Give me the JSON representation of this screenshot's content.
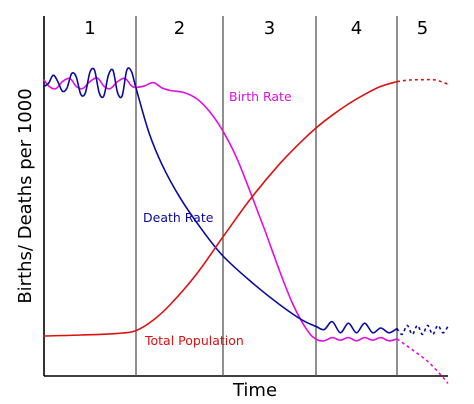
{
  "chart_data": {
    "type": "line",
    "xlabel": "Time",
    "ylabel": "Births/ Deaths per 1000",
    "stages": [
      "1",
      "2",
      "3",
      "4",
      "5"
    ],
    "stage_boundaries": [
      0,
      1,
      2,
      3,
      4,
      5
    ],
    "x_range": [
      0,
      5
    ],
    "y_range": [
      0,
      100
    ],
    "grid": false,
    "legend": "none (series labeled inline)",
    "series": [
      {
        "name": "Birth Rate",
        "color": "#e010e0",
        "x": [
          0.0,
          0.06,
          0.13,
          0.2,
          0.28,
          0.35,
          0.42,
          0.5,
          0.58,
          0.65,
          0.72,
          0.8,
          0.88,
          0.95,
          1.0,
          1.1,
          1.2,
          1.3,
          1.4,
          1.55,
          1.7,
          1.85,
          2.0,
          2.15,
          2.3,
          2.45,
          2.6,
          2.75,
          2.9,
          3.0,
          3.1,
          3.2,
          3.3,
          3.4,
          3.5,
          3.6,
          3.7,
          3.8,
          3.9,
          4.0
        ],
        "y": [
          92.5,
          90.4,
          89.8,
          92.0,
          93.0,
          90.5,
          89.8,
          92.0,
          93.1,
          90.6,
          89.8,
          92.0,
          93.0,
          90.7,
          90.2,
          90.7,
          91.7,
          90.0,
          89.2,
          88.6,
          86.6,
          82.5,
          76.5,
          68.0,
          57.0,
          45.5,
          33.5,
          22.5,
          14.5,
          11.5,
          11.0,
          12.0,
          11.2,
          12.0,
          11.0,
          12.0,
          11.2,
          12.0,
          11.0,
          11.6
        ],
        "projection": {
          "x": [
            4.0,
            4.3,
            4.6,
            4.85,
            5.0
          ],
          "y": [
            11.6,
            8.2,
            4.6,
            0.5,
            -2.3
          ],
          "style": "dashed"
        }
      },
      {
        "name": "Death Rate",
        "color": "#0a0aa0",
        "x": [
          0.0,
          0.05,
          0.1,
          0.15,
          0.2,
          0.25,
          0.3,
          0.35,
          0.4,
          0.45,
          0.5,
          0.55,
          0.6,
          0.65,
          0.7,
          0.75,
          0.8,
          0.85,
          0.9,
          0.95,
          1.0,
          1.15,
          1.3,
          1.5,
          1.75,
          2.0,
          2.3,
          2.6,
          2.85,
          3.0,
          3.1,
          3.2,
          3.3,
          3.4,
          3.5,
          3.6,
          3.7,
          3.8,
          3.9,
          4.0
        ],
        "y": [
          90.5,
          91.5,
          94.0,
          92.0,
          89.0,
          90.0,
          94.5,
          93.5,
          88.0,
          88.5,
          95.0,
          95.5,
          88.5,
          87.5,
          94.0,
          95.5,
          88.5,
          87.6,
          95.6,
          95.2,
          90.0,
          76.0,
          66.0,
          56.0,
          46.0,
          37.5,
          29.5,
          22.5,
          17.5,
          15.5,
          14.5,
          17.0,
          13.5,
          16.5,
          13.5,
          16.5,
          13.5,
          15.0,
          13.5,
          14.8
        ],
        "projection": {
          "x": [
            4.0,
            4.1,
            4.2,
            4.3,
            4.4,
            4.5,
            4.6,
            4.7,
            4.8,
            4.9,
            5.0
          ],
          "y": [
            14.8,
            13.0,
            15.8,
            13.0,
            15.8,
            13.0,
            15.8,
            13.0,
            15.8,
            13.5,
            15.5
          ],
          "style": "dashed"
        }
      },
      {
        "name": "Total Population",
        "color": "#dd1111",
        "x": [
          0.0,
          0.4,
          0.8,
          1.0,
          1.2,
          1.4,
          1.7,
          2.0,
          2.3,
          2.6,
          2.85,
          3.0,
          3.2,
          3.4,
          3.6,
          3.8,
          4.0
        ],
        "y": [
          12.5,
          12.8,
          13.3,
          14.2,
          17.5,
          22.5,
          32.0,
          43.5,
          55.5,
          66.0,
          73.5,
          77.5,
          81.5,
          85.0,
          88.0,
          90.5,
          92.0
        ],
        "projection": {
          "x": [
            4.0,
            4.25,
            4.5,
            4.75,
            5.0
          ],
          "y": [
            92.0,
            92.5,
            92.6,
            92.5,
            91.2
          ],
          "style": "dashed"
        }
      }
    ]
  },
  "labels": {
    "birth_rate": "Birth Rate",
    "death_rate": "Death Rate",
    "total_population": "Total Population"
  }
}
